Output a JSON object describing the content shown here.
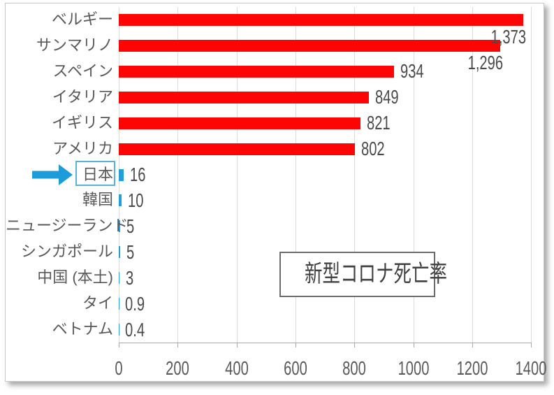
{
  "title_box": {
    "text": "新型コロナ死亡率"
  },
  "highlight": {
    "country": "日本",
    "arrow_icon": "right-arrow",
    "arrow_color": "#1c9cd9",
    "box_border_color": "#5bb1de"
  },
  "chart_data": {
    "type": "bar",
    "orientation": "horizontal",
    "title": "新型コロナ死亡率",
    "categories": [
      "ベルギー",
      "サンマリノ",
      "スペイン",
      "イタリア",
      "イギリス",
      "アメリカ",
      "日本",
      "韓国",
      "ニュージーランド",
      "シンガポール",
      "中国 (本土)",
      "タイ",
      "ベトナム"
    ],
    "values": [
      1373,
      1296,
      934,
      849,
      821,
      802,
      16,
      10,
      5,
      5,
      3,
      0.9,
      0.4
    ],
    "value_labels": [
      "1,373",
      "1,296",
      "934",
      "849",
      "821",
      "802",
      "16",
      "10",
      "5",
      "5",
      "3",
      "0.9",
      "0.4"
    ],
    "bar_colors": [
      "red",
      "red",
      "red",
      "red",
      "red",
      "red",
      "blue",
      "blue",
      "blue",
      "blue",
      "blue",
      "blue",
      "blue"
    ],
    "label_placement": [
      "below",
      "below",
      "right",
      "right",
      "right",
      "right",
      "right",
      "right",
      "right",
      "right",
      "right",
      "right",
      "right"
    ],
    "colors": {
      "red": "#fe0404",
      "blue": "#219fda",
      "gridline": "#dcdcdc",
      "axis": "#a8a8a8"
    },
    "x_ticks": [
      0,
      200,
      400,
      600,
      800,
      1000,
      1200,
      1400
    ],
    "x_tick_labels": [
      "0",
      "200",
      "400",
      "600",
      "800",
      "1000",
      "1200",
      "1400"
    ],
    "xlim": [
      0,
      1400
    ],
    "grid": true,
    "legend": "none"
  }
}
